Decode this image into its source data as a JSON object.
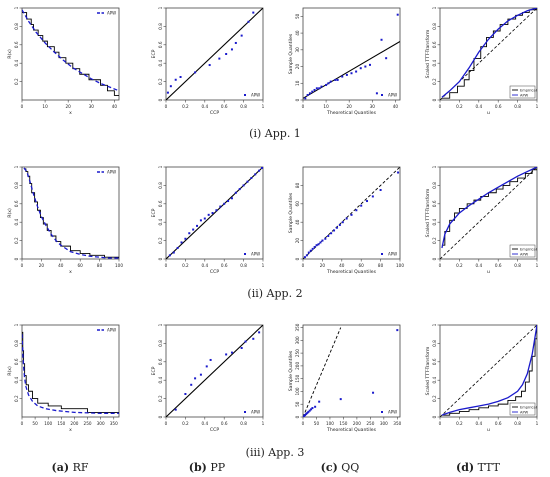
{
  "rows": [
    {
      "label_prefix": "(i)",
      "label_text": "App. 1"
    },
    {
      "label_prefix": "(ii)",
      "label_text": "App. 2"
    },
    {
      "label_prefix": "(iii)",
      "label_text": "App. 3"
    }
  ],
  "columns": [
    {
      "letter": "(a)",
      "name": "RF"
    },
    {
      "letter": "(b)",
      "name": "PP"
    },
    {
      "letter": "(c)",
      "name": "QQ"
    },
    {
      "letter": "(d)",
      "name": "TTT"
    }
  ],
  "colors": {
    "empirical": "#000000",
    "fitted": "#1a1acc",
    "axis": "#444444"
  },
  "chart_data": [
    {
      "id": "app1-rf",
      "type": "line",
      "xlabel": "x",
      "ylabel": "R(x)",
      "xlim": [
        0,
        42
      ],
      "ylim": [
        0,
        1.0
      ],
      "xticks": [
        0,
        10,
        20,
        30,
        40
      ],
      "yticks": [
        0.2,
        0.4,
        0.6,
        0.8,
        1.0
      ],
      "legend": "APW",
      "legend_position": "top-right",
      "series": [
        {
          "name": "Empirical",
          "style": "step",
          "x": [
            0,
            2,
            4,
            5,
            7,
            9,
            11,
            14,
            16,
            19,
            22,
            25,
            29,
            34,
            37,
            40,
            42
          ],
          "y": [
            0.95,
            0.88,
            0.82,
            0.76,
            0.7,
            0.64,
            0.58,
            0.52,
            0.46,
            0.4,
            0.34,
            0.28,
            0.22,
            0.16,
            0.1,
            0.05,
            0.05
          ]
        },
        {
          "name": "APW",
          "style": "dashed",
          "x": [
            0,
            3,
            6,
            10,
            14,
            18,
            22,
            26,
            30,
            34,
            38,
            42
          ],
          "y": [
            0.98,
            0.85,
            0.74,
            0.62,
            0.52,
            0.43,
            0.35,
            0.29,
            0.23,
            0.18,
            0.14,
            0.1
          ]
        }
      ]
    },
    {
      "id": "app1-pp",
      "type": "scatter",
      "xlabel": "CCP",
      "ylabel": "ECP",
      "xlim": [
        0,
        1
      ],
      "ylim": [
        0,
        1
      ],
      "xticks": [
        0.0,
        0.2,
        0.4,
        0.6,
        0.8,
        1.0
      ],
      "yticks": [
        0.0,
        0.2,
        0.4,
        0.6,
        0.8,
        1.0
      ],
      "legend": "APW",
      "legend_position": "bottom-right",
      "reference_line": [
        [
          0,
          0
        ],
        [
          1,
          1
        ]
      ],
      "points": {
        "x": [
          0.02,
          0.05,
          0.1,
          0.15,
          0.3,
          0.45,
          0.55,
          0.62,
          0.68,
          0.72,
          0.78,
          0.85,
          0.9
        ],
        "y": [
          0.08,
          0.15,
          0.22,
          0.25,
          0.3,
          0.38,
          0.45,
          0.5,
          0.55,
          0.62,
          0.7,
          0.85,
          0.95
        ]
      }
    },
    {
      "id": "app1-qq",
      "type": "scatter",
      "xlabel": "Theoretical Quantiles",
      "ylabel": "Sample Quantiles",
      "xlim": [
        0,
        42
      ],
      "ylim": [
        0,
        55
      ],
      "xticks": [
        0,
        10,
        20,
        30,
        40
      ],
      "yticks": [
        0,
        10,
        20,
        30,
        40,
        50
      ],
      "legend": "APW",
      "legend_position": "bottom-right",
      "reference_line": [
        [
          0,
          1
        ],
        [
          42,
          35
        ]
      ],
      "points": {
        "x": [
          1,
          2,
          3,
          4,
          5,
          6,
          7,
          8,
          10,
          11,
          12,
          14,
          15,
          17,
          19,
          21,
          23,
          25,
          27,
          29,
          32,
          34,
          36,
          41
        ],
        "y": [
          1,
          3,
          4,
          5,
          6,
          7,
          7,
          8,
          9,
          10,
          11,
          12,
          12,
          14,
          15,
          16,
          17,
          19,
          20,
          21,
          4,
          36,
          25,
          51
        ]
      }
    },
    {
      "id": "app1-ttt",
      "type": "line",
      "xlabel": "u",
      "ylabel": "Scaled TTT-Transform",
      "xlim": [
        0,
        1
      ],
      "ylim": [
        0,
        1
      ],
      "xticks": [
        0.0,
        0.2,
        0.4,
        0.6,
        0.8,
        1.0
      ],
      "yticks": [
        0.0,
        0.2,
        0.4,
        0.6,
        0.8,
        1.0
      ],
      "legend_position": "bottom-right",
      "reference_line": [
        [
          0,
          0
        ],
        [
          1,
          1
        ]
      ],
      "series": [
        {
          "name": "Empirical",
          "style": "step",
          "x": [
            0.02,
            0.1,
            0.18,
            0.25,
            0.3,
            0.35,
            0.42,
            0.48,
            0.55,
            0.62,
            0.7,
            0.78,
            0.85,
            0.92,
            1.0
          ],
          "y": [
            0.02,
            0.08,
            0.15,
            0.22,
            0.32,
            0.45,
            0.58,
            0.68,
            0.75,
            0.82,
            0.88,
            0.92,
            0.95,
            0.98,
            1.0
          ]
        },
        {
          "name": "APW",
          "style": "solid",
          "x": [
            0.02,
            0.1,
            0.2,
            0.3,
            0.4,
            0.5,
            0.6,
            0.7,
            0.8,
            0.9,
            1.0
          ],
          "y": [
            0.03,
            0.1,
            0.2,
            0.35,
            0.52,
            0.66,
            0.77,
            0.86,
            0.92,
            0.97,
            1.0
          ]
        }
      ]
    },
    {
      "id": "app2-rf",
      "type": "line",
      "xlabel": "x",
      "ylabel": "R(x)",
      "xlim": [
        0,
        100
      ],
      "ylim": [
        0,
        1.0
      ],
      "xticks": [
        0,
        20,
        40,
        60,
        80,
        100
      ],
      "yticks": [
        0.0,
        0.2,
        0.4,
        0.6,
        0.8,
        1.0
      ],
      "legend": "APW",
      "legend_position": "top-right",
      "series": [
        {
          "name": "Empirical",
          "style": "step",
          "x": [
            2,
            4,
            6,
            8,
            10,
            13,
            16,
            19,
            22,
            26,
            30,
            35,
            40,
            50,
            60,
            70,
            85,
            100
          ],
          "y": [
            0.98,
            0.95,
            0.9,
            0.82,
            0.72,
            0.62,
            0.53,
            0.45,
            0.38,
            0.31,
            0.25,
            0.19,
            0.14,
            0.09,
            0.06,
            0.04,
            0.02,
            0.01
          ]
        },
        {
          "name": "APW",
          "style": "dashed",
          "x": [
            2,
            5,
            8,
            12,
            16,
            20,
            25,
            30,
            35,
            40,
            50,
            60,
            70,
            80,
            90,
            100
          ],
          "y": [
            0.99,
            0.95,
            0.85,
            0.7,
            0.57,
            0.46,
            0.36,
            0.27,
            0.2,
            0.15,
            0.08,
            0.05,
            0.03,
            0.02,
            0.01,
            0.01
          ]
        }
      ]
    },
    {
      "id": "app2-pp",
      "type": "scatter",
      "xlabel": "CCP",
      "ylabel": "ECP",
      "xlim": [
        0,
        1
      ],
      "ylim": [
        0,
        1
      ],
      "xticks": [
        0.0,
        0.2,
        0.4,
        0.6,
        0.8,
        1.0
      ],
      "yticks": [
        0.0,
        0.2,
        0.4,
        0.6,
        0.8,
        1.0
      ],
      "legend": "APW",
      "legend_position": "bottom-right",
      "reference_line": [
        [
          0,
          0
        ],
        [
          1,
          1
        ]
      ],
      "points": {
        "x": [
          0.04,
          0.08,
          0.12,
          0.16,
          0.2,
          0.24,
          0.28,
          0.32,
          0.36,
          0.4,
          0.44,
          0.48,
          0.52,
          0.56,
          0.6,
          0.64,
          0.68,
          0.72,
          0.76,
          0.8,
          0.84,
          0.88,
          0.92,
          0.96,
          0.99
        ],
        "y": [
          0.04,
          0.07,
          0.12,
          0.18,
          0.22,
          0.28,
          0.32,
          0.36,
          0.42,
          0.44,
          0.48,
          0.5,
          0.53,
          0.57,
          0.6,
          0.63,
          0.66,
          0.72,
          0.76,
          0.8,
          0.84,
          0.88,
          0.92,
          0.96,
          0.99
        ]
      }
    },
    {
      "id": "app2-qq",
      "type": "scatter",
      "xlabel": "Theoretical Quantiles",
      "ylabel": "Sample Quantiles",
      "xlim": [
        0,
        100
      ],
      "ylim": [
        0,
        100
      ],
      "xticks": [
        0,
        20,
        40,
        60,
        80,
        100
      ],
      "yticks": [
        0,
        20,
        40,
        60,
        80
      ],
      "legend": "APW",
      "legend_position": "bottom-right",
      "reference_line": [
        [
          0,
          0
        ],
        [
          100,
          100
        ]
      ],
      "points": {
        "x": [
          2,
          4,
          6,
          8,
          10,
          12,
          14,
          16,
          18,
          20,
          23,
          26,
          29,
          32,
          35,
          38,
          41,
          45,
          50,
          55,
          60,
          66,
          72,
          80,
          98
        ],
        "y": [
          2,
          4,
          7,
          9,
          11,
          13,
          15,
          16,
          18,
          20,
          22,
          25,
          28,
          31,
          34,
          37,
          40,
          44,
          48,
          53,
          58,
          63,
          68,
          75,
          94
        ]
      }
    },
    {
      "id": "app2-ttt",
      "type": "line",
      "xlabel": "u",
      "ylabel": "Scaled TTT-Transform",
      "xlim": [
        0,
        1
      ],
      "ylim": [
        0,
        1
      ],
      "xticks": [
        0.0,
        0.2,
        0.4,
        0.6,
        0.8,
        1.0
      ],
      "yticks": [
        0.0,
        0.2,
        0.4,
        0.6,
        0.8,
        1.0
      ],
      "legend_position": "bottom-right",
      "reference_line": [
        [
          0,
          0
        ],
        [
          1,
          1
        ]
      ],
      "series": [
        {
          "name": "Empirical",
          "style": "step",
          "x": [
            0.02,
            0.05,
            0.1,
            0.15,
            0.2,
            0.28,
            0.35,
            0.42,
            0.5,
            0.58,
            0.65,
            0.72,
            0.8,
            0.88,
            0.95,
            1.0
          ],
          "y": [
            0.15,
            0.3,
            0.42,
            0.5,
            0.55,
            0.6,
            0.64,
            0.68,
            0.72,
            0.76,
            0.8,
            0.84,
            0.88,
            0.93,
            0.97,
            1.0
          ]
        },
        {
          "name": "APW",
          "style": "solid",
          "x": [
            0.02,
            0.05,
            0.1,
            0.2,
            0.3,
            0.4,
            0.5,
            0.6,
            0.7,
            0.8,
            0.9,
            1.0
          ],
          "y": [
            0.12,
            0.27,
            0.38,
            0.5,
            0.58,
            0.65,
            0.72,
            0.78,
            0.84,
            0.9,
            0.95,
            1.0
          ]
        }
      ]
    },
    {
      "id": "app3-rf",
      "type": "line",
      "xlabel": "x",
      "ylabel": "R(x)",
      "xlim": [
        0,
        370
      ],
      "ylim": [
        0,
        1.0
      ],
      "xticks": [
        0,
        50,
        100,
        150,
        200,
        250,
        300,
        350
      ],
      "yticks": [
        0.2,
        0.4,
        0.6,
        0.8,
        1.0
      ],
      "legend": "APW",
      "legend_position": "top-right",
      "series": [
        {
          "name": "Empirical",
          "style": "step",
          "x": [
            0,
            3,
            6,
            10,
            16,
            25,
            40,
            60,
            100,
            150,
            250,
            350,
            370
          ],
          "y": [
            0.92,
            0.72,
            0.58,
            0.45,
            0.35,
            0.28,
            0.2,
            0.15,
            0.12,
            0.09,
            0.05,
            0.05,
            0.05
          ]
        },
        {
          "name": "APW",
          "style": "dashed",
          "x": [
            0,
            3,
            6,
            10,
            15,
            25,
            40,
            60,
            90,
            130,
            200,
            300,
            370
          ],
          "y": [
            0.9,
            0.7,
            0.55,
            0.42,
            0.33,
            0.24,
            0.17,
            0.12,
            0.09,
            0.07,
            0.05,
            0.04,
            0.04
          ]
        }
      ]
    },
    {
      "id": "app3-pp",
      "type": "scatter",
      "xlabel": "CCP",
      "ylabel": "ECP",
      "xlim": [
        0,
        1
      ],
      "ylim": [
        0,
        1
      ],
      "xticks": [
        0.0,
        0.2,
        0.4,
        0.6,
        0.8,
        1.0
      ],
      "yticks": [
        0.0,
        0.2,
        0.4,
        0.6,
        0.8,
        1.0
      ],
      "legend": "APW",
      "legend_position": "bottom-right",
      "reference_line": [
        [
          0,
          0
        ],
        [
          1,
          1
        ]
      ],
      "points": {
        "x": [
          0.1,
          0.2,
          0.26,
          0.3,
          0.36,
          0.42,
          0.46,
          0.62,
          0.68,
          0.78,
          0.82,
          0.9,
          0.96
        ],
        "y": [
          0.08,
          0.25,
          0.35,
          0.42,
          0.46,
          0.55,
          0.62,
          0.68,
          0.7,
          0.75,
          0.82,
          0.85,
          0.92
        ]
      }
    },
    {
      "id": "app3-qq",
      "type": "scatter",
      "xlabel": "Theoretical Quantiles",
      "ylabel": "Sample Quantiles",
      "xlim": [
        0,
        360
      ],
      "ylim": [
        0,
        360
      ],
      "xticks": [
        0,
        50,
        100,
        150,
        200,
        250,
        300,
        350
      ],
      "yticks": [
        0,
        50,
        100,
        150,
        200,
        250,
        300,
        350
      ],
      "legend": "APW",
      "legend_position": "bottom-right",
      "reference_line": [
        [
          0,
          0
        ],
        [
          140,
          350
        ]
      ],
      "points": {
        "x": [
          2,
          5,
          8,
          12,
          16,
          20,
          25,
          30,
          35,
          45,
          60,
          140,
          260,
          350
        ],
        "y": [
          2,
          5,
          8,
          12,
          16,
          20,
          25,
          30,
          35,
          40,
          60,
          70,
          95,
          340
        ]
      }
    },
    {
      "id": "app3-ttt",
      "type": "line",
      "xlabel": "u",
      "ylabel": "Scaled TTT-Transform",
      "xlim": [
        0,
        1
      ],
      "ylim": [
        0,
        1
      ],
      "xticks": [
        0.0,
        0.2,
        0.4,
        0.6,
        0.8,
        1.0
      ],
      "yticks": [
        0.0,
        0.2,
        0.4,
        0.6,
        0.8,
        1.0
      ],
      "legend_position": "bottom-right",
      "reference_line": [
        [
          0,
          0
        ],
        [
          1,
          1
        ]
      ],
      "series": [
        {
          "name": "Empirical",
          "style": "step",
          "x": [
            0.02,
            0.1,
            0.2,
            0.3,
            0.4,
            0.5,
            0.6,
            0.7,
            0.78,
            0.84,
            0.88,
            0.92,
            0.95,
            0.98,
            1.0
          ],
          "y": [
            0.02,
            0.04,
            0.06,
            0.08,
            0.1,
            0.12,
            0.14,
            0.18,
            0.22,
            0.28,
            0.38,
            0.5,
            0.66,
            0.85,
            1.0
          ]
        },
        {
          "name": "APW",
          "style": "solid",
          "x": [
            0.02,
            0.1,
            0.2,
            0.3,
            0.4,
            0.5,
            0.6,
            0.7,
            0.8,
            0.85,
            0.9,
            0.95,
            1.0
          ],
          "y": [
            0.02,
            0.05,
            0.08,
            0.1,
            0.12,
            0.14,
            0.17,
            0.21,
            0.28,
            0.35,
            0.47,
            0.68,
            1.0
          ]
        }
      ]
    }
  ]
}
